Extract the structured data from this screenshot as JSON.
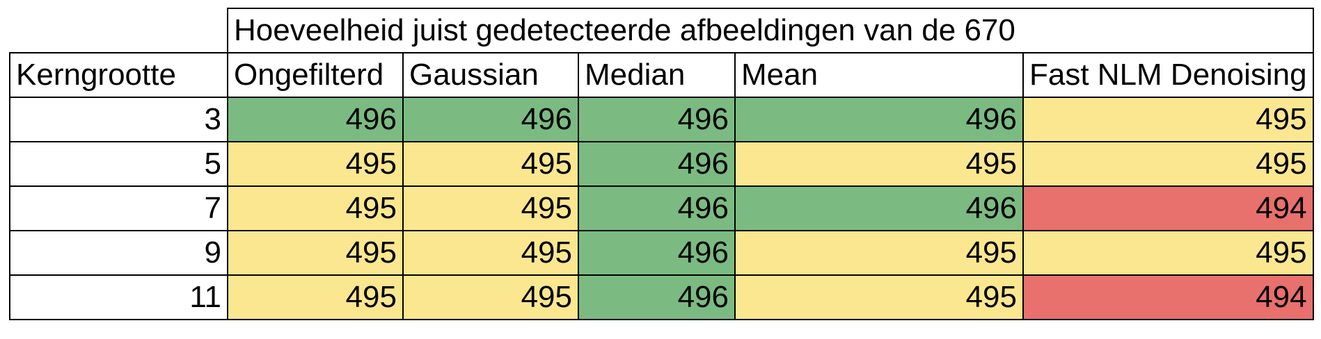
{
  "table": {
    "super_header": "Hoeveelheid juist gedetecteerde afbeeldingen van de 670",
    "row_header_label": "Kerngrootte",
    "columns": [
      "Ongefilterd",
      "Gaussian",
      "Median",
      "Mean",
      "Fast NLM Denoising"
    ],
    "colors": {
      "best": "#7bbb82",
      "middle": "#fbe790",
      "worst": "#e8706d"
    },
    "rows": [
      {
        "kernel": "3",
        "values": [
          "496",
          "496",
          "496",
          "496",
          "495"
        ],
        "levels": [
          "best",
          "best",
          "best",
          "best",
          "middle"
        ]
      },
      {
        "kernel": "5",
        "values": [
          "495",
          "495",
          "496",
          "495",
          "495"
        ],
        "levels": [
          "middle",
          "middle",
          "best",
          "middle",
          "middle"
        ]
      },
      {
        "kernel": "7",
        "values": [
          "495",
          "495",
          "496",
          "496",
          "494"
        ],
        "levels": [
          "middle",
          "middle",
          "best",
          "best",
          "worst"
        ]
      },
      {
        "kernel": "9",
        "values": [
          "495",
          "495",
          "496",
          "495",
          "495"
        ],
        "levels": [
          "middle",
          "middle",
          "best",
          "middle",
          "middle"
        ]
      },
      {
        "kernel": "11",
        "values": [
          "495",
          "495",
          "496",
          "495",
          "494"
        ],
        "levels": [
          "middle",
          "middle",
          "best",
          "middle",
          "worst"
        ]
      }
    ]
  }
}
